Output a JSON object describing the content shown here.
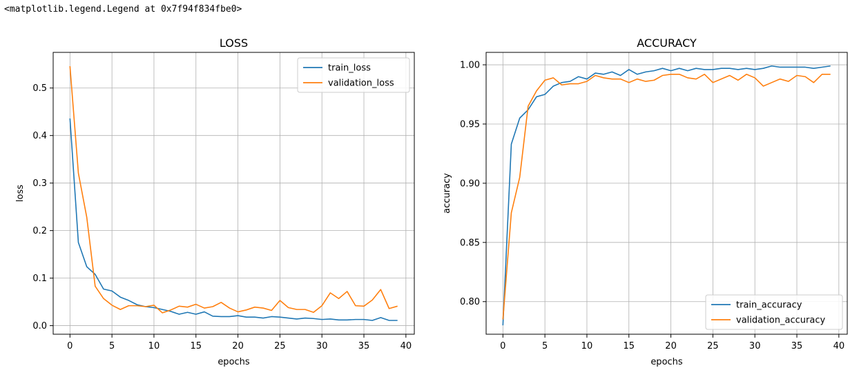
{
  "output_text": "<matplotlib.legend.Legend at 0x7f94f834fbe0>",
  "chart_data": [
    {
      "type": "line",
      "title": "LOSS",
      "xlabel": "epochs",
      "ylabel": "loss",
      "xlim": [
        -2,
        41
      ],
      "ylim": [
        -0.018,
        0.575
      ],
      "xticks": [
        0,
        5,
        10,
        15,
        20,
        25,
        30,
        35,
        40
      ],
      "yticks": [
        0.0,
        0.1,
        0.2,
        0.3,
        0.4,
        0.5
      ],
      "ytick_labels": [
        "0.0",
        "0.1",
        "0.2",
        "0.3",
        "0.4",
        "0.5"
      ],
      "grid": true,
      "legend_position": "top-right",
      "x": [
        0,
        1,
        2,
        3,
        4,
        5,
        6,
        7,
        8,
        9,
        10,
        11,
        12,
        13,
        14,
        15,
        16,
        17,
        18,
        19,
        20,
        21,
        22,
        23,
        24,
        25,
        26,
        27,
        28,
        29,
        30,
        31,
        32,
        33,
        34,
        35,
        36,
        37,
        38,
        39
      ],
      "series": [
        {
          "name": "train_loss",
          "color": "#1f77b4",
          "values": [
            0.436,
            0.175,
            0.124,
            0.108,
            0.077,
            0.073,
            0.06,
            0.053,
            0.044,
            0.04,
            0.038,
            0.034,
            0.03,
            0.024,
            0.028,
            0.024,
            0.029,
            0.02,
            0.019,
            0.019,
            0.021,
            0.018,
            0.018,
            0.016,
            0.019,
            0.018,
            0.016,
            0.014,
            0.016,
            0.015,
            0.013,
            0.014,
            0.012,
            0.012,
            0.013,
            0.013,
            0.011,
            0.017,
            0.011,
            0.011
          ]
        },
        {
          "name": "validation_loss",
          "color": "#ff7f0e",
          "values": [
            0.546,
            0.321,
            0.228,
            0.083,
            0.057,
            0.043,
            0.034,
            0.042,
            0.042,
            0.04,
            0.043,
            0.027,
            0.033,
            0.041,
            0.039,
            0.045,
            0.037,
            0.04,
            0.049,
            0.037,
            0.029,
            0.033,
            0.039,
            0.037,
            0.032,
            0.053,
            0.038,
            0.034,
            0.034,
            0.028,
            0.042,
            0.069,
            0.057,
            0.072,
            0.042,
            0.041,
            0.054,
            0.076,
            0.036,
            0.041
          ]
        }
      ]
    },
    {
      "type": "line",
      "title": "ACCURACY",
      "xlabel": "epochs",
      "ylabel": "accuracy",
      "xlim": [
        -2,
        41
      ],
      "ylim": [
        0.7725,
        1.0105
      ],
      "xticks": [
        0,
        5,
        10,
        15,
        20,
        25,
        30,
        35,
        40
      ],
      "yticks": [
        0.8,
        0.85,
        0.9,
        0.95,
        1.0
      ],
      "ytick_labels": [
        "0.80",
        "0.85",
        "0.90",
        "0.95",
        "1.00"
      ],
      "grid": true,
      "legend_position": "bottom-right",
      "x": [
        0,
        1,
        2,
        3,
        4,
        5,
        6,
        7,
        8,
        9,
        10,
        11,
        12,
        13,
        14,
        15,
        16,
        17,
        18,
        19,
        20,
        21,
        22,
        23,
        24,
        25,
        26,
        27,
        28,
        29,
        30,
        31,
        32,
        33,
        34,
        35,
        36,
        37,
        38,
        39
      ],
      "series": [
        {
          "name": "train_accuracy",
          "color": "#1f77b4",
          "values": [
            0.78,
            0.933,
            0.955,
            0.962,
            0.973,
            0.975,
            0.982,
            0.985,
            0.986,
            0.99,
            0.988,
            0.993,
            0.992,
            0.994,
            0.991,
            0.996,
            0.992,
            0.994,
            0.995,
            0.997,
            0.995,
            0.997,
            0.995,
            0.997,
            0.996,
            0.996,
            0.997,
            0.997,
            0.996,
            0.997,
            0.996,
            0.997,
            0.999,
            0.998,
            0.998,
            0.998,
            0.998,
            0.997,
            0.998,
            0.999
          ]
        },
        {
          "name": "validation_accuracy",
          "color": "#ff7f0e",
          "values": [
            0.785,
            0.875,
            0.905,
            0.965,
            0.978,
            0.987,
            0.989,
            0.983,
            0.984,
            0.984,
            0.986,
            0.991,
            0.989,
            0.988,
            0.988,
            0.985,
            0.988,
            0.986,
            0.987,
            0.991,
            0.992,
            0.992,
            0.989,
            0.988,
            0.992,
            0.985,
            0.988,
            0.991,
            0.987,
            0.992,
            0.989,
            0.982,
            0.985,
            0.988,
            0.986,
            0.991,
            0.99,
            0.985,
            0.992,
            0.992
          ]
        }
      ]
    }
  ]
}
